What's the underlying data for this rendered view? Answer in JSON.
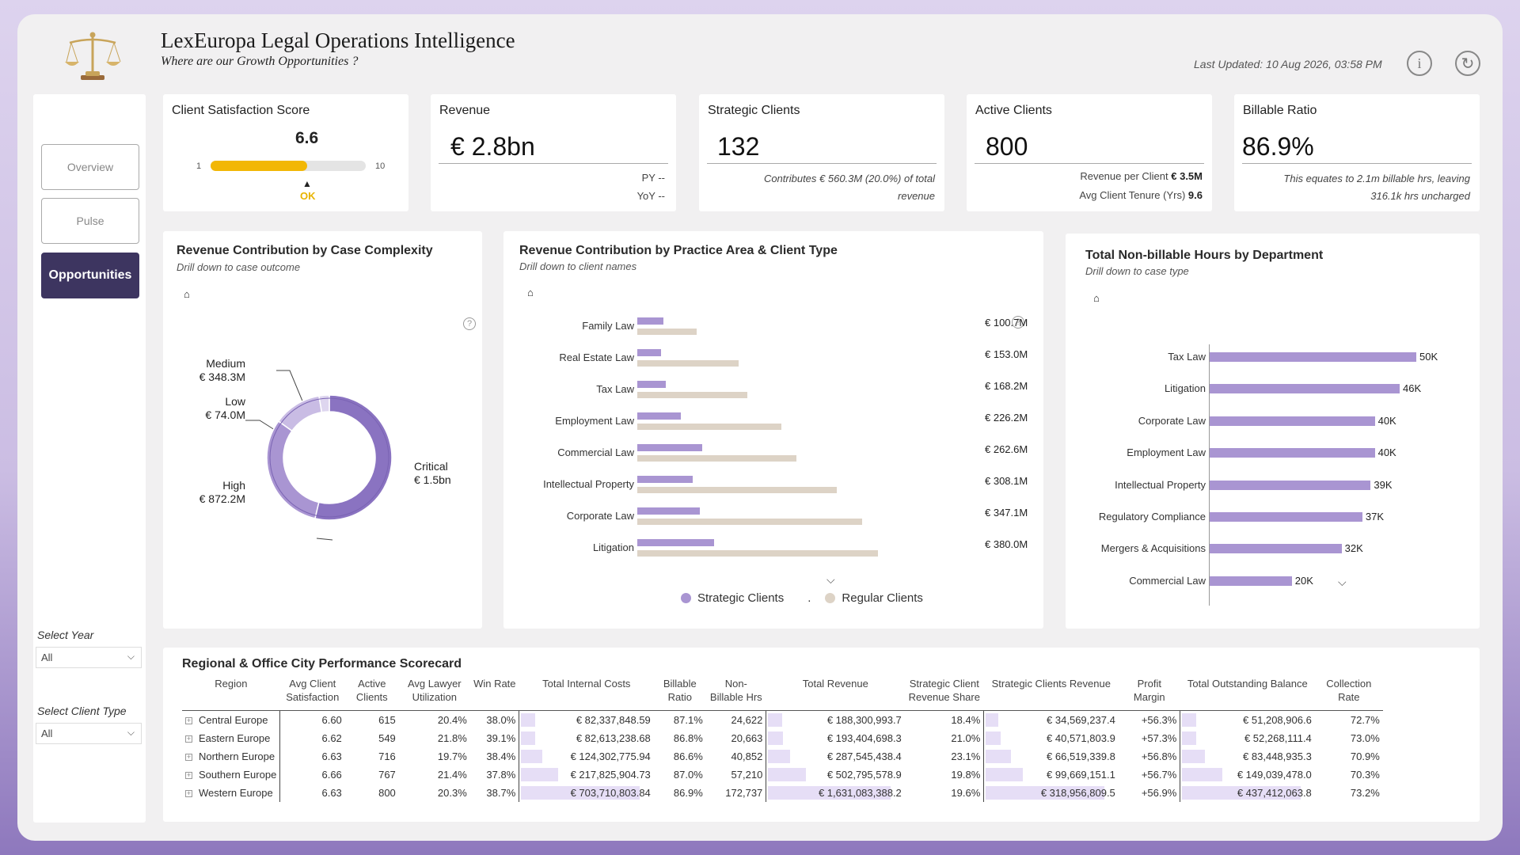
{
  "header": {
    "title": "LexEuropa Legal Operations Intelligence",
    "subtitle": "Where are our Growth Opportunities ?",
    "last_updated": "Last Updated: 10 Aug 2026, 03:58 PM",
    "info_icon": "info-icon",
    "refresh_icon": "refresh-icon",
    "logo_icon": "scales-of-justice-icon"
  },
  "nav": {
    "items": [
      {
        "label": "Overview",
        "active": false
      },
      {
        "label": "Pulse",
        "active": false
      },
      {
        "label": "Opportunities",
        "active": true
      }
    ]
  },
  "filters": {
    "year_label": "Select Year",
    "year_value": "All",
    "client_type_label": "Select Client Type",
    "client_type_value": "All"
  },
  "kpis": {
    "csat": {
      "title": "Client Satisfaction Score",
      "value": "6.6",
      "min": "1",
      "max": "10",
      "fill_fraction": 0.62,
      "status": "OK"
    },
    "revenue": {
      "title": "Revenue",
      "value": "€ 2.8bn",
      "py": "PY --",
      "yoy": "YoY --"
    },
    "strategic": {
      "title": "Strategic Clients",
      "value": "132",
      "note": "Contributes € 560.3M (20.0%) of total revenue"
    },
    "active": {
      "title": "Active Clients",
      "value": "800",
      "rev_per_client_label": "Revenue per Client",
      "rev_per_client": "€ 3.5M",
      "tenure_label": "Avg Client Tenure (Yrs)",
      "tenure": "9.6"
    },
    "billable": {
      "title": "Billable Ratio",
      "value": "86.9%",
      "note": "This equates to 2.1m billable hrs, leaving 316.1k hrs uncharged"
    }
  },
  "donut": {
    "title": "Revenue Contribution by Case Complexity",
    "subtitle": "Drill down to case outcome",
    "labels": {
      "medium": "Medium",
      "medium_val": "€ 348.3M",
      "low": "Low",
      "low_val": "€ 74.0M",
      "high": "High",
      "high_val": "€ 872.2M",
      "critical": "Critical",
      "critical_val": "€ 1.5bn"
    }
  },
  "chart_data": [
    {
      "type": "pie",
      "title": "Revenue Contribution by Case Complexity",
      "categories": [
        "Critical",
        "High",
        "Medium",
        "Low"
      ],
      "values": [
        1500,
        872.2,
        348.3,
        74.0
      ],
      "unit": "€ M",
      "colors": [
        "#8a73c1",
        "#a995d2",
        "#c9bce4",
        "#ded6ef"
      ]
    },
    {
      "type": "bar",
      "title": "Revenue Contribution by Practice Area & Client Type",
      "categories": [
        "Family Law",
        "Real Estate Law",
        "Tax Law",
        "Employment Law",
        "Commercial Law",
        "Intellectual Property",
        "Corporate Law",
        "Litigation"
      ],
      "totals": [
        "€ 100.7M",
        "€ 153.0M",
        "€ 168.2M",
        "€ 226.2M",
        "€ 262.6M",
        "€ 308.1M",
        "€ 347.1M",
        "€ 380.0M"
      ],
      "series": [
        {
          "name": "Strategic Clients",
          "values": [
            22,
            20,
            24,
            37,
            55,
            47,
            53,
            65
          ],
          "color": "#a995d2"
        },
        {
          "name": "Regular Clients",
          "values": [
            78,
            133,
            144,
            189,
            208,
            261,
            294,
            315
          ],
          "color": "#ddd3c6"
        }
      ],
      "xlim": [
        0,
        400
      ]
    },
    {
      "type": "bar",
      "title": "Total Non-billable Hours by Department",
      "categories": [
        "Tax Law",
        "Litigation",
        "Corporate Law",
        "Employment Law",
        "Intellectual Property",
        "Regulatory Compliance",
        "Mergers & Acquisitions",
        "Commercial Law"
      ],
      "values": [
        50,
        46,
        40,
        40,
        39,
        37,
        32,
        20
      ],
      "value_labels": [
        "50K",
        "46K",
        "40K",
        "40K",
        "39K",
        "37K",
        "32K",
        "20K"
      ],
      "xlim": [
        0,
        50
      ]
    }
  ],
  "practice": {
    "title": "Revenue Contribution by Practice Area & Client Type",
    "subtitle": "Drill down to client names",
    "legend_strategic": "Strategic Clients",
    "legend_regular": "Regular Clients"
  },
  "nonbill": {
    "title": "Total Non-billable Hours by Department",
    "subtitle": "Drill down to case type"
  },
  "scorecard": {
    "title": "Regional & Office City Performance Scorecard",
    "columns": [
      "Region",
      "Avg Client Satisfaction",
      "Active Clients",
      "Avg Lawyer Utilization",
      "Win Rate",
      "Total Internal Costs",
      "Billable Ratio",
      "Non-Billable Hrs",
      "Total Revenue",
      "Strategic Client Revenue Share",
      "Strategic Clients Revenue",
      "Profit Margin",
      "Total Outstanding Balance",
      "Collection Rate"
    ],
    "rows": [
      {
        "region": "Central Europe",
        "csat": "6.60",
        "active": "615",
        "util": "20.4%",
        "win": "38.0%",
        "costs": "€ 82,337,848.59",
        "costs_f": 0.117,
        "bill": "87.1%",
        "nonbill": "24,622",
        "rev": "€ 188,300,993.7",
        "rev_f": 0.115,
        "share": "18.4%",
        "strat": "€ 34,569,237.4",
        "strat_f": 0.108,
        "margin": "+56.3%",
        "outst": "€ 51,208,906.6",
        "outst_f": 0.117,
        "coll": "72.7%"
      },
      {
        "region": "Eastern Europe",
        "csat": "6.62",
        "active": "549",
        "util": "21.8%",
        "win": "39.1%",
        "costs": "€ 82,613,238.68",
        "costs_f": 0.117,
        "bill": "86.8%",
        "nonbill": "20,663",
        "rev": "€ 193,404,698.3",
        "rev_f": 0.119,
        "share": "21.0%",
        "strat": "€ 40,571,803.9",
        "strat_f": 0.127,
        "margin": "+57.3%",
        "outst": "€ 52,268,111.4",
        "outst_f": 0.119,
        "coll": "73.0%"
      },
      {
        "region": "Northern Europe",
        "csat": "6.63",
        "active": "716",
        "util": "19.7%",
        "win": "38.4%",
        "costs": "€ 124,302,775.94",
        "costs_f": 0.177,
        "bill": "86.6%",
        "nonbill": "40,852",
        "rev": "€ 287,545,438.4",
        "rev_f": 0.176,
        "share": "23.1%",
        "strat": "€ 66,519,339.8",
        "strat_f": 0.209,
        "margin": "+56.8%",
        "outst": "€ 83,448,935.3",
        "outst_f": 0.19,
        "coll": "70.9%"
      },
      {
        "region": "Southern Europe",
        "csat": "6.66",
        "active": "767",
        "util": "21.4%",
        "win": "37.8%",
        "costs": "€ 217,825,904.73",
        "costs_f": 0.31,
        "bill": "87.0%",
        "nonbill": "57,210",
        "rev": "€ 502,795,578.9",
        "rev_f": 0.308,
        "share": "19.8%",
        "strat": "€ 99,669,151.1",
        "strat_f": 0.312,
        "margin": "+56.7%",
        "outst": "€ 149,039,478.0",
        "outst_f": 0.34,
        "coll": "70.3%"
      },
      {
        "region": "Western Europe",
        "csat": "6.63",
        "active": "800",
        "util": "20.3%",
        "win": "38.7%",
        "costs": "€ 703,710,803.84",
        "costs_f": 1.0,
        "bill": "86.9%",
        "nonbill": "172,737",
        "rev": "€ 1,631,083,388.2",
        "rev_f": 1.0,
        "share": "19.6%",
        "strat": "€ 318,956,809.5",
        "strat_f": 1.0,
        "margin": "+56.9%",
        "outst": "€ 437,412,063.8",
        "outst_f": 1.0,
        "coll": "73.2%"
      }
    ]
  }
}
